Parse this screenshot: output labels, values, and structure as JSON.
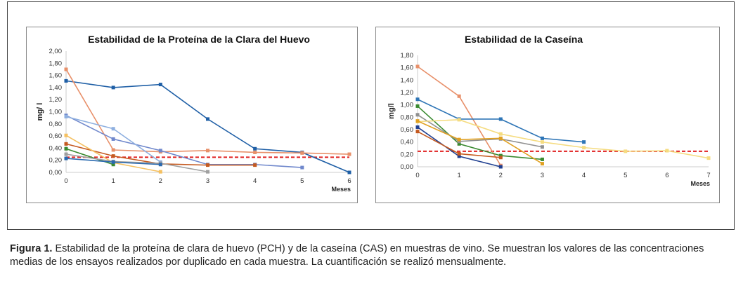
{
  "chart_data": [
    {
      "type": "line",
      "title": "Estabilidad de la Proteína de la Clara del Huevo",
      "xlabel": "Meses",
      "ylabel": "mg/ l",
      "xlim": [
        0,
        6
      ],
      "ylim": [
        0,
        2
      ],
      "ystep": 0.2,
      "x_ticks": [
        "0",
        "1",
        "2",
        "3",
        "4",
        "5",
        "6"
      ],
      "y_ticks": [
        "0,00",
        "0,20",
        "0,40",
        "0,60",
        "0,80",
        "1,00",
        "1,20",
        "1,40",
        "1,60",
        "1,80",
        "2,00"
      ],
      "threshold": 0.25,
      "threshold_color": "#e02020",
      "series": [
        {
          "color": "#1f5fa6",
          "values": [
            1.51,
            1.4,
            1.45,
            0.88,
            0.39,
            0.33,
            0.0
          ]
        },
        {
          "color": "#e8906a",
          "values": [
            1.7,
            0.37,
            0.34,
            0.36,
            0.33,
            0.32,
            0.3
          ]
        },
        {
          "color": "#7088cc",
          "values": [
            0.94,
            0.55,
            0.36,
            0.13,
            0.13,
            0.08
          ]
        },
        {
          "color": "#8fb0e0",
          "values": [
            0.92,
            0.72,
            0.17
          ]
        },
        {
          "color": "#c55a20",
          "values": [
            0.47,
            0.27,
            0.14,
            0.12,
            0.12
          ]
        },
        {
          "color": "#f5c060",
          "values": [
            0.61,
            0.16,
            0.01
          ]
        },
        {
          "color": "#3a8a30",
          "values": [
            0.39,
            0.13
          ]
        },
        {
          "color": "#a0a0a0",
          "values": [
            0.3,
            0.18,
            0.15,
            0.01
          ]
        },
        {
          "color": "#2a6ab0",
          "values": [
            0.23,
            0.17,
            0.13
          ]
        }
      ]
    },
    {
      "type": "line",
      "title": "Estabilidad de la Caseína",
      "xlabel": "Meses",
      "ylabel": "mg/l",
      "xlim": [
        0,
        7
      ],
      "ylim": [
        0,
        1.8
      ],
      "ystep": 0.2,
      "x_ticks": [
        "0",
        "1",
        "2",
        "3",
        "4",
        "5",
        "6",
        "7"
      ],
      "y_ticks": [
        "0,00",
        "0,20",
        "0,40",
        "0,60",
        "0,80",
        "1,00",
        "1,20",
        "1,40",
        "1,60",
        "1,80"
      ],
      "threshold": 0.25,
      "threshold_color": "#e02020",
      "series": [
        {
          "color": "#e8906a",
          "values": [
            1.62,
            1.14,
            0.02
          ]
        },
        {
          "color": "#2e75b6",
          "values": [
            1.09,
            0.77,
            0.77,
            0.46,
            0.4
          ]
        },
        {
          "color": "#3a8a30",
          "values": [
            0.98,
            0.37,
            0.18,
            0.12
          ]
        },
        {
          "color": "#909090",
          "values": [
            0.84,
            0.41,
            0.45,
            0.32
          ]
        },
        {
          "color": "#f5dc80",
          "values": [
            0.73,
            0.76,
            0.53,
            0.4,
            0.31,
            0.25,
            0.26,
            0.14
          ]
        },
        {
          "color": "#e0a020",
          "values": [
            0.74,
            0.44,
            0.46,
            0.05
          ]
        },
        {
          "color": "#1f3f90",
          "values": [
            0.64,
            0.17,
            0.0
          ]
        },
        {
          "color": "#c55a20",
          "values": [
            0.57,
            0.21,
            0.15
          ]
        }
      ]
    }
  ],
  "caption": {
    "label": "Figura 1.",
    "text": " Estabilidad de la proteína de clara de huevo (PCH) y de la caseína (CAS) en muestras de vino. Se muestran los valores de las concentraciones medias de los ensayos realizados por duplicado en cada muestra. La cuantificación se realizó mensualmente."
  }
}
